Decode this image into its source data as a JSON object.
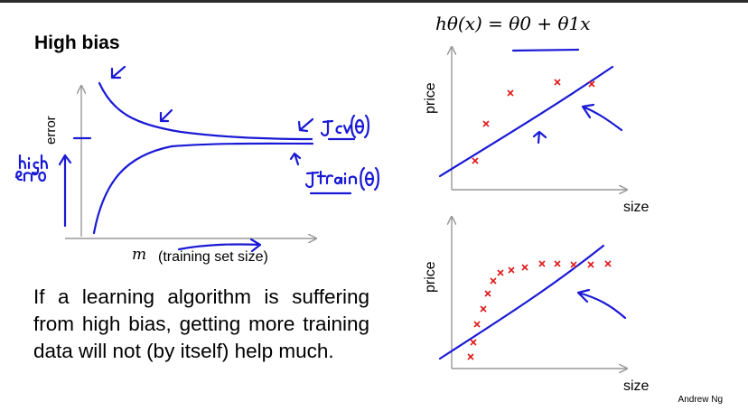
{
  "title": "High bias",
  "body_text": "If a learning algorithm is suffering from high bias, getting more training data will not (by itself) help much.",
  "credit": "Andrew Ng",
  "learning_curve": {
    "ylabel": "error",
    "xlabel_var": "m",
    "xlabel_desc": "(training set size)",
    "annotation_cv": "J_cv(θ)",
    "annotation_train": "J_train(θ)",
    "annotation_high_error": "high error"
  },
  "hypothesis": "hθ(x) = θ0 + θ1x",
  "plots": [
    {
      "ylabel": "price",
      "xlabel": "size"
    },
    {
      "ylabel": "price",
      "xlabel": "size"
    }
  ],
  "colors": {
    "ink": "#1a1ad6",
    "points": "#e01818",
    "axis": "#999999"
  }
}
